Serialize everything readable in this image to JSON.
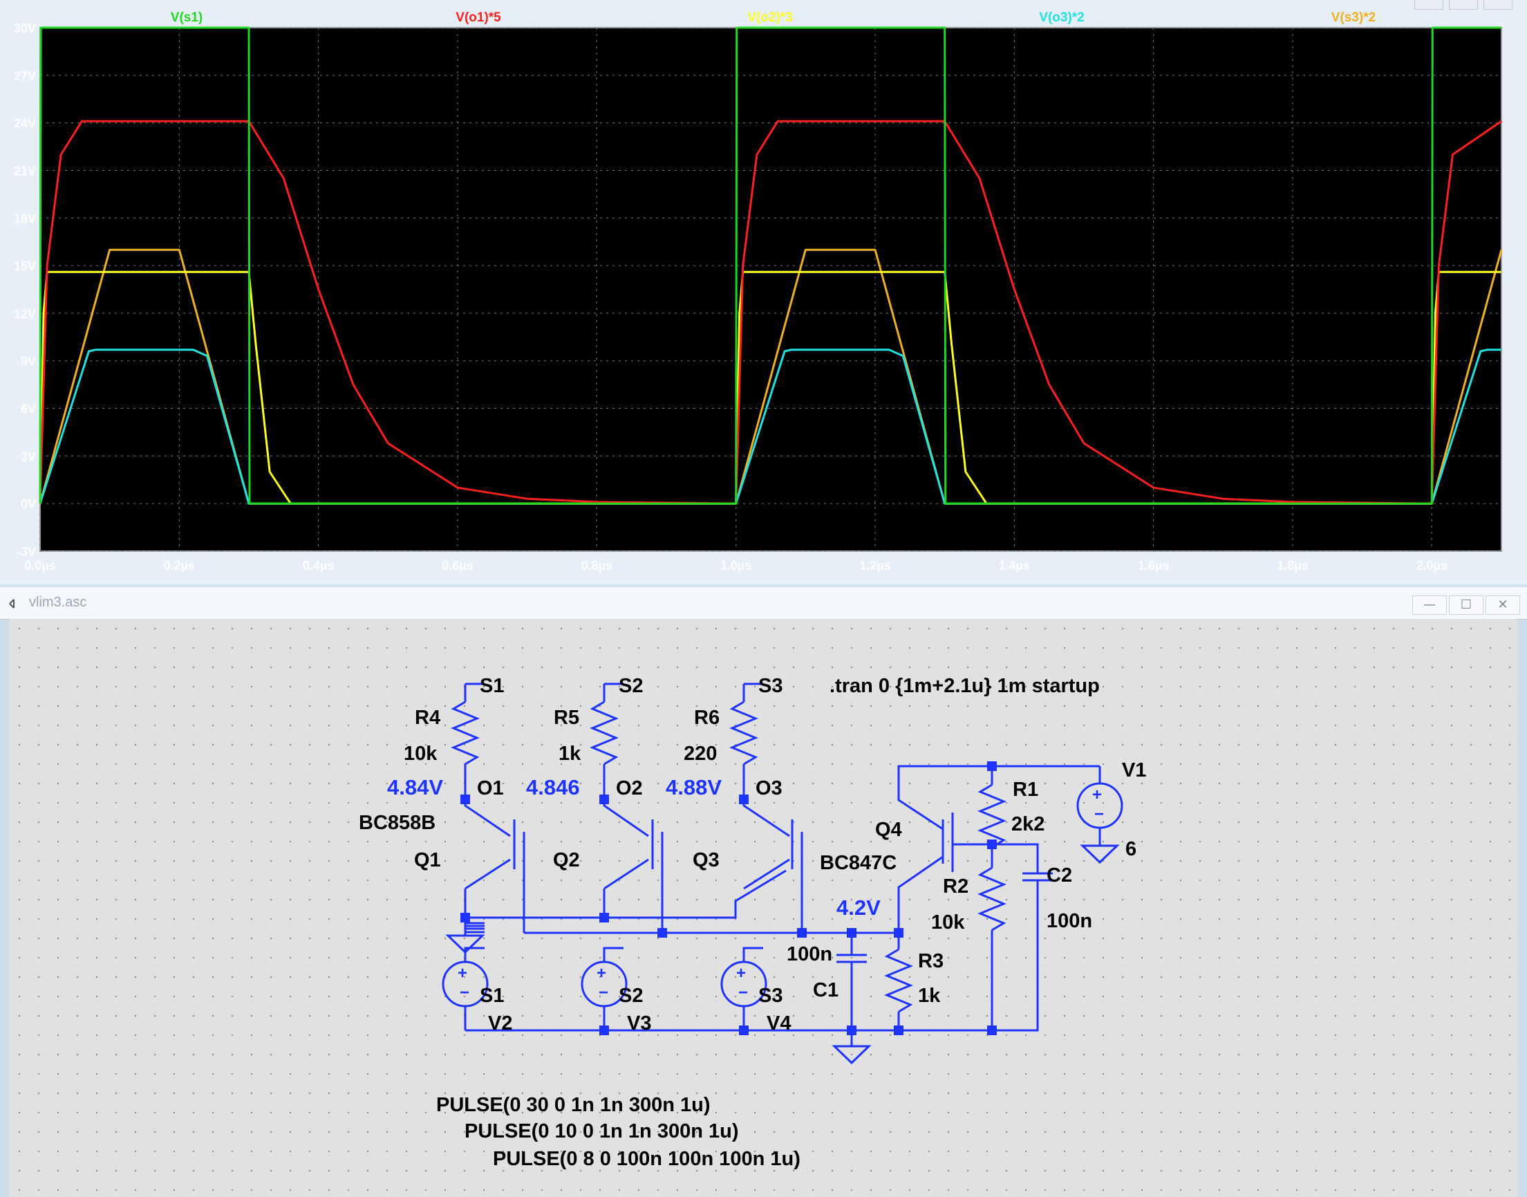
{
  "waveform": {
    "title": "",
    "traces": [
      {
        "label": "V(s1)",
        "color": "#21d821"
      },
      {
        "label": "V(o1)*5",
        "color": "#ff2020"
      },
      {
        "label": "V(o2)*3",
        "color": "#ffff20"
      },
      {
        "label": "V(o3)*2",
        "color": "#20e0e0"
      },
      {
        "label": "V(s3)*2",
        "color": "#f0b020"
      }
    ],
    "y_ticks": [
      "30V",
      "27V",
      "24V",
      "21V",
      "18V",
      "15V",
      "12V",
      "9V",
      "6V",
      "3V",
      "0V",
      "-3V"
    ],
    "x_ticks": [
      "0.0µs",
      "0.2µs",
      "0.4µs",
      "0.6µs",
      "0.8µs",
      "1.0µs",
      "1.2µs",
      "1.4µs",
      "1.6µs",
      "1.8µs",
      "2.0µs"
    ]
  },
  "chart_data": {
    "type": "line",
    "title": "",
    "xlabel": "",
    "ylabel": "",
    "x_unit": "µs",
    "xlim": [
      0.0,
      2.1
    ],
    "ylim": [
      -3,
      30
    ],
    "grid": true,
    "series": [
      {
        "name": "V(s1)",
        "color": "#21d821",
        "x": [
          0,
          0.001,
          0.3,
          0.301,
          1.0,
          1.001,
          1.3,
          1.301,
          2.0,
          2.001,
          2.1
        ],
        "y": [
          0,
          30,
          30,
          0,
          0,
          30,
          30,
          0,
          0,
          30,
          30
        ]
      },
      {
        "name": "V(o1)*5",
        "color": "#ff2020",
        "x": [
          0,
          0.01,
          0.03,
          0.06,
          0.3,
          0.35,
          0.4,
          0.45,
          0.5,
          0.6,
          0.7,
          0.8,
          1.0,
          1.01,
          1.03,
          1.06,
          1.3,
          1.35,
          1.4,
          1.45,
          1.5,
          1.6,
          1.7,
          1.8,
          2.0,
          2.01,
          2.03,
          2.1
        ],
        "y": [
          0,
          15,
          22,
          24.1,
          24.1,
          20.5,
          13.5,
          7.5,
          3.8,
          1.0,
          0.3,
          0.1,
          0,
          15,
          22,
          24.1,
          24.1,
          20.5,
          13.5,
          7.5,
          3.8,
          1.0,
          0.3,
          0.1,
          0,
          15,
          22,
          24.1
        ]
      },
      {
        "name": "V(o2)*3",
        "color": "#ffff20",
        "x": [
          0,
          0.005,
          0.01,
          0.3,
          0.31,
          0.33,
          0.36,
          1.0,
          1.005,
          1.01,
          1.3,
          1.31,
          1.33,
          1.36,
          2.0,
          2.005,
          2.01,
          2.1
        ],
        "y": [
          0,
          12,
          14.6,
          14.6,
          10,
          2,
          0,
          0,
          12,
          14.6,
          14.6,
          10,
          2,
          0,
          0,
          12,
          14.6,
          14.6
        ]
      },
      {
        "name": "V(o3)*2",
        "color": "#20e0e0",
        "x": [
          0,
          0.07,
          0.08,
          0.22,
          0.24,
          0.3,
          1.0,
          1.07,
          1.08,
          1.22,
          1.24,
          1.3,
          2.0,
          2.07,
          2.08,
          2.1
        ],
        "y": [
          0,
          9.6,
          9.7,
          9.7,
          9.3,
          0,
          0,
          9.6,
          9.7,
          9.7,
          9.3,
          0,
          0,
          9.6,
          9.7,
          9.7
        ]
      },
      {
        "name": "V(s3)*2",
        "color": "#f0b020",
        "x": [
          0,
          0.1,
          0.2,
          0.3,
          1.0,
          1.1,
          1.2,
          1.3,
          2.0,
          2.1
        ],
        "y": [
          0,
          16,
          16,
          0,
          0,
          16,
          16,
          0,
          0,
          16
        ]
      }
    ]
  },
  "schematic": {
    "window_title": "vlim3.asc",
    "directive": ".tran 0 {1m+2.1u} 1m startup",
    "labels": {
      "S1_top": "S1",
      "S2_top": "S2",
      "S3_top": "S3",
      "R4": "R4",
      "R4_val": "10k",
      "R5": "R5",
      "R5_val": "1k",
      "R6": "R6",
      "R6_val": "220",
      "O1": "O1",
      "O2": "O2",
      "O3": "O3",
      "op1": "4.84V",
      "op2": "4.846",
      "op3": "4.88V",
      "op4": "4.2V",
      "Q1_model": "BC858B",
      "Q1": "Q1",
      "Q2": "Q2",
      "Q3": "Q3",
      "Q4": "Q4",
      "Q4_model": "BC847C",
      "R1": "R1",
      "R1_val": "2k2",
      "R2": "R2",
      "R2_val": "10k",
      "R3": "R3",
      "R3_val": "1k",
      "C1": "C1",
      "C1_val": "100n",
      "C2": "C2",
      "C2_val": "100n",
      "V1": "V1",
      "V1_val": "6",
      "S1_bot": "S1",
      "S2_bot": "S2",
      "S3_bot": "S3",
      "V2": "V2",
      "V3": "V3",
      "V4": "V4",
      "pulse1": "PULSE(0 30 0 1n 1n 300n 1u)",
      "pulse2": "PULSE(0 10 0 1n 1n 300n 1u)",
      "pulse3": "PULSE(0 8 0 100n 100n 100n 1u)"
    }
  },
  "window_buttons": {
    "minimize": "—",
    "maximize": "☐",
    "close": "✕"
  }
}
